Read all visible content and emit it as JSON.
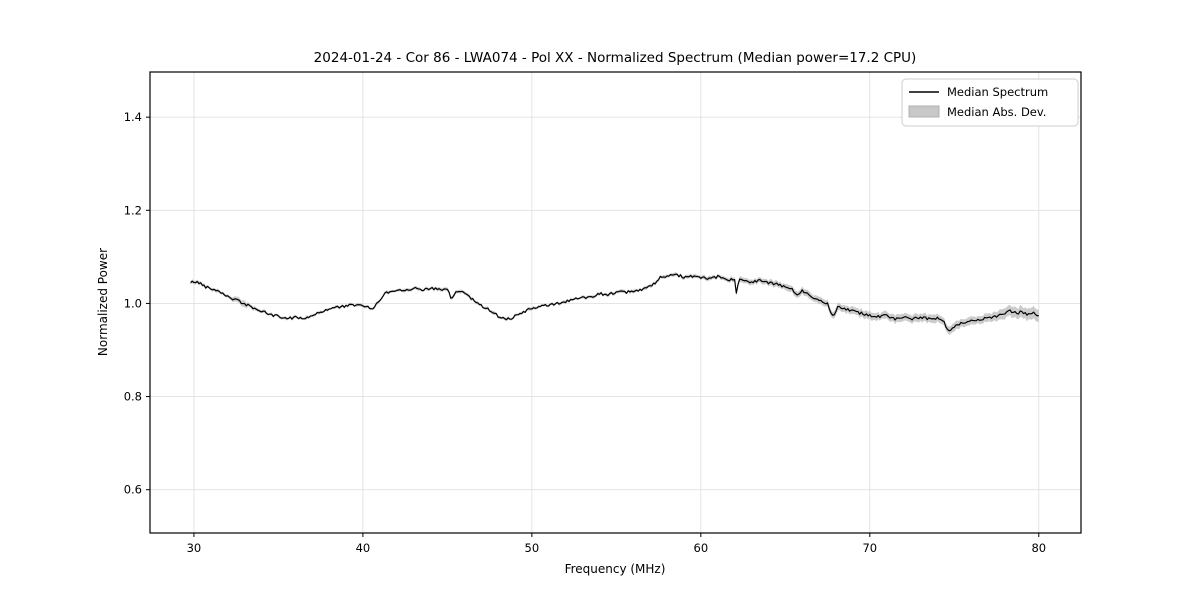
{
  "chart_data": {
    "type": "line",
    "title": "2024-01-24 - Cor 86 - LWA074 - Pol XX - Normalized Spectrum (Median power=17.2 CPU)",
    "xlabel": "Frequency (MHz)",
    "ylabel": "Normalized Power",
    "xlim": [
      27.4,
      82.5
    ],
    "ylim": [
      0.507,
      1.497
    ],
    "x_ticks": [
      30,
      40,
      50,
      60,
      70,
      80
    ],
    "y_ticks": [
      "0.6",
      "0.8",
      "1.0",
      "1.2",
      "1.4"
    ],
    "y_tick_values": [
      0.6,
      0.8,
      1.0,
      1.2,
      1.4
    ],
    "grid": true,
    "grid_color": "#e0e0e0",
    "background_color": "#ffffff",
    "spine_color": "#000000",
    "legend": {
      "position": "upper right",
      "border_color": "#cccccc",
      "entries": [
        {
          "label": "Median Spectrum",
          "type": "line",
          "color": "#000000"
        },
        {
          "label": "Median Abs. Dev.",
          "type": "patch",
          "color": "#c8c8c8",
          "edge_color": "#b0b0b0"
        }
      ]
    },
    "sample_step_mhz": 0.1,
    "noise_amplitude": 0.003,
    "series": [
      {
        "name": "Median Spectrum",
        "color": "#000000",
        "freq_mhz": [
          29.8,
          30.0,
          30.4,
          30.7,
          31.0,
          31.5,
          32.0,
          32.5,
          33.0,
          33.5,
          34.0,
          34.5,
          35.0,
          35.5,
          36.0,
          36.5,
          37.0,
          37.5,
          38.0,
          38.5,
          39.0,
          39.5,
          40.0,
          40.4,
          40.7,
          41.0,
          41.3,
          41.7,
          42.0,
          42.5,
          43.0,
          43.5,
          44.0,
          44.5,
          45.0,
          45.25,
          45.5,
          46.0,
          46.3,
          46.7,
          47.0,
          47.5,
          48.0,
          48.4,
          48.8,
          49.2,
          49.6,
          50.0,
          50.5,
          51.0,
          51.5,
          52.0,
          52.5,
          53.0,
          53.5,
          54.0,
          54.5,
          55.0,
          55.5,
          56.0,
          56.5,
          57.0,
          57.3,
          57.6,
          58.0,
          58.5,
          59.0,
          59.5,
          60.0,
          60.5,
          61.0,
          61.5,
          62.0,
          62.1,
          62.3,
          62.7,
          63.0,
          63.5,
          64.0,
          64.5,
          65.0,
          65.4,
          65.7,
          66.0,
          66.5,
          67.0,
          67.5,
          67.85,
          68.1,
          68.5,
          69.0,
          69.5,
          70.0,
          70.5,
          71.0,
          71.5,
          72.0,
          72.5,
          73.0,
          73.5,
          74.0,
          74.35,
          74.65,
          75.0,
          75.5,
          76.0,
          76.5,
          77.0,
          77.5,
          78.0,
          78.3,
          78.7,
          79.0,
          79.3,
          79.6,
          80.0
        ],
        "power": [
          1.044,
          1.047,
          1.043,
          1.036,
          1.032,
          1.027,
          1.015,
          1.007,
          0.999,
          0.991,
          0.983,
          0.976,
          0.972,
          0.968,
          0.97,
          0.968,
          0.974,
          0.981,
          0.989,
          0.992,
          0.994,
          0.997,
          0.994,
          0.99,
          0.992,
          1.008,
          1.022,
          1.026,
          1.028,
          1.03,
          1.032,
          1.03,
          1.033,
          1.029,
          1.03,
          1.008,
          1.026,
          1.024,
          1.014,
          1.002,
          0.996,
          0.986,
          0.973,
          0.967,
          0.969,
          0.975,
          0.983,
          0.99,
          0.993,
          0.996,
          1.0,
          1.004,
          1.009,
          1.012,
          1.015,
          1.021,
          1.019,
          1.025,
          1.023,
          1.026,
          1.03,
          1.037,
          1.043,
          1.055,
          1.057,
          1.062,
          1.057,
          1.059,
          1.056,
          1.052,
          1.057,
          1.049,
          1.052,
          1.024,
          1.052,
          1.048,
          1.047,
          1.05,
          1.044,
          1.041,
          1.035,
          1.03,
          1.018,
          1.027,
          1.017,
          1.007,
          0.999,
          0.97,
          0.995,
          0.99,
          0.983,
          0.979,
          0.975,
          0.971,
          0.974,
          0.967,
          0.972,
          0.967,
          0.97,
          0.967,
          0.969,
          0.964,
          0.938,
          0.95,
          0.958,
          0.962,
          0.966,
          0.968,
          0.972,
          0.978,
          0.984,
          0.979,
          0.982,
          0.976,
          0.98,
          0.974
        ]
      },
      {
        "name": "Median Abs. Dev.",
        "color": "#c3c3c3",
        "freq_mhz": [
          29.8,
          31.0,
          32.0,
          32.5,
          32.9,
          33.3,
          34.0,
          40.0,
          45.0,
          50.0,
          55.0,
          57.0,
          60.0,
          62.0,
          63.0,
          65.0,
          66.0,
          68.0,
          70.0,
          72.0,
          74.0,
          75.0,
          76.0,
          77.0,
          78.0,
          79.0,
          80.0
        ],
        "mad": [
          0.004,
          0.0035,
          0.003,
          0.006,
          0.007,
          0.004,
          0.003,
          0.003,
          0.0035,
          0.003,
          0.003,
          0.0035,
          0.004,
          0.005,
          0.006,
          0.0065,
          0.007,
          0.0075,
          0.008,
          0.008,
          0.0085,
          0.009,
          0.008,
          0.009,
          0.011,
          0.012,
          0.013
        ]
      }
    ]
  }
}
